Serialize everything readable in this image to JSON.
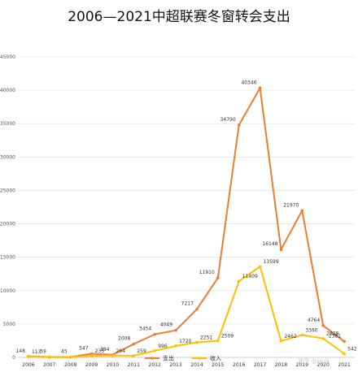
{
  "chart_data": {
    "type": "line",
    "title": "2006—2021中超联赛冬窗转会支出",
    "xlabel": "",
    "ylabel": "",
    "categories": [
      "2006",
      "2007",
      "2008",
      "2009",
      "2010",
      "2011",
      "2012",
      "2013",
      "2014",
      "2015",
      "2016",
      "2017",
      "2018",
      "2019",
      "2020",
      "2021"
    ],
    "ylim": [
      0,
      45000
    ],
    "yticks": [
      0,
      5000,
      10000,
      15000,
      20000,
      25000,
      30000,
      35000,
      40000,
      45000
    ],
    "grid": "horizontal",
    "legend_position": "bottom",
    "series": [
      {
        "name": "支出",
        "color": "#ed7d31",
        "values": [
          148,
          59,
          45,
          547,
          384,
          2008,
          3454,
          4049,
          7217,
          11910,
          34790,
          40346,
          16148,
          21970,
          4764,
          2381
        ],
        "labels": [
          "148",
          "59",
          "45",
          "547",
          "384",
          "2008",
          "3454",
          "4049",
          "7217",
          "11910",
          "34790",
          "40346",
          "16148",
          "21970",
          "4764",
          "2381"
        ]
      },
      {
        "name": "收入",
        "color": "#ffc000",
        "values": [
          113,
          30,
          17,
          235,
          264,
          259,
          996,
          1720,
          2251,
          2509,
          11409,
          13599,
          2462,
          3360,
          2829,
          542
        ],
        "labels": [
          "113",
          "",
          "",
          "235",
          "264",
          "259",
          "996",
          "1720",
          "2251",
          "2509",
          "11409",
          "13599",
          "2462",
          "3360",
          "2829",
          "542"
        ]
      }
    ]
  },
  "watermark": "知乎 @Hulk"
}
